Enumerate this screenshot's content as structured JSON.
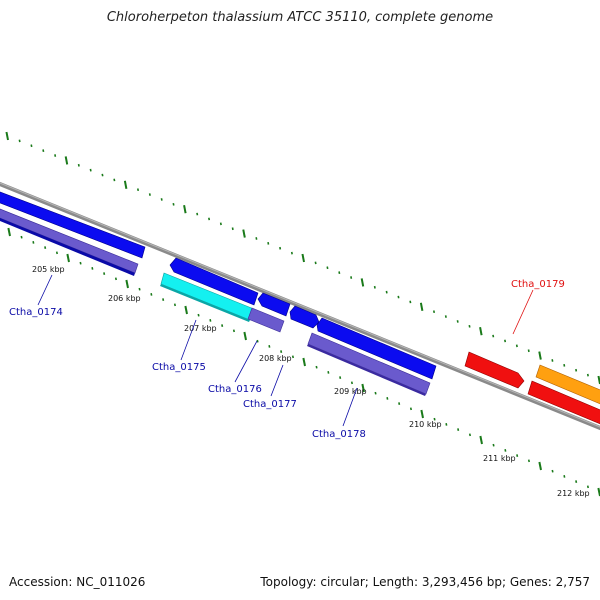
{
  "title": "Chloroherpeton thalassium ATCC 35110, complete genome",
  "footer": {
    "accession": "Accession: NC_011026",
    "summary": "Topology: circular; Length: 3,293,456 bp; Genes: 2,757"
  },
  "scale_labels": [
    "205 kbp",
    "206 kbp",
    "207 kbp",
    "208 kbp",
    "209 kbp",
    "210 kbp",
    "211 kbp",
    "212 kbp"
  ],
  "genes": [
    {
      "label": "Ctha_0174",
      "color": "#0a0aa6"
    },
    {
      "label": "Ctha_0175",
      "color": "#0a0aa6"
    },
    {
      "label": "Ctha_0176",
      "color": "#0a0aa6"
    },
    {
      "label": "Ctha_0177",
      "color": "#0a0aa6"
    },
    {
      "label": "Ctha_0178",
      "color": "#0a0aa6"
    },
    {
      "label": "Ctha_0179",
      "color": "#e01010"
    }
  ],
  "colors": {
    "backbone": "#8a8a8a",
    "tick": "#1a7a1a",
    "blue": "#0b0bf0",
    "slate": "#6a5acd",
    "cyan": "#14f0f0",
    "red": "#f01010",
    "orange": "#ffa010"
  }
}
